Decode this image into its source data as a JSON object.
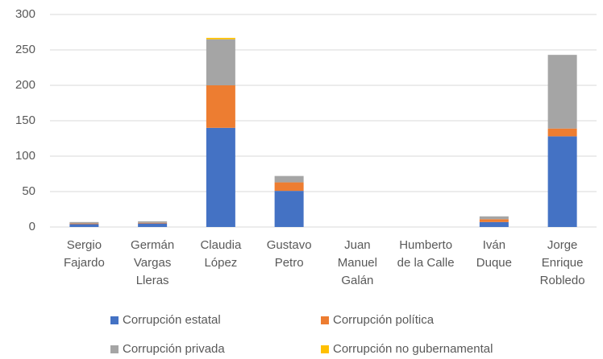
{
  "chart_data": {
    "type": "stacked_bar",
    "categories": [
      "Sergio\nFajardo",
      "Germán\nVargas\nLleras",
      "Claudia\nLópez",
      "Gustavo\nPetro",
      "Juan\nManuel\nGalán",
      "Humberto\nde la Calle",
      "Iván\nDuque",
      "Jorge\nEnrique\nRobledo"
    ],
    "series": [
      {
        "name": "Corrupción estatal",
        "color": "#4472c4",
        "values": [
          4,
          5,
          140,
          51,
          0,
          0,
          7,
          128
        ]
      },
      {
        "name": "Corrupción política",
        "color": "#ed7d31",
        "values": [
          1,
          1,
          60,
          12,
          0,
          0,
          4,
          11
        ]
      },
      {
        "name": "Corrupción privada",
        "color": "#a5a5a5",
        "values": [
          2,
          2,
          65,
          9,
          0,
          0,
          4,
          104
        ]
      },
      {
        "name": "Corrupción no gubernamental",
        "color": "#ffc000",
        "values": [
          0,
          0,
          2,
          0,
          0,
          0,
          0,
          0
        ]
      }
    ],
    "ylim": [
      0,
      300
    ],
    "yticks": [
      0,
      50,
      100,
      150,
      200,
      250,
      300
    ],
    "grid": true,
    "legend": "bottom"
  }
}
